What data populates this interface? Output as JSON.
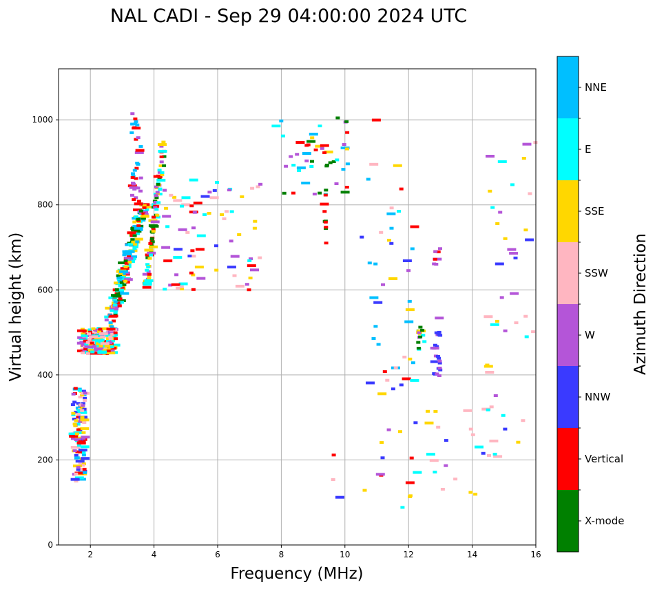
{
  "chart_data": {
    "type": "scatter",
    "title": "NAL CADI - Sep 29 04:00:00 2024 UTC",
    "xlabel": "Frequency (MHz)",
    "ylabel": "Virtual height (km)",
    "xlim": [
      1,
      16
    ],
    "ylim": [
      0,
      1120
    ],
    "xticks": [
      2,
      4,
      6,
      8,
      10,
      12,
      14,
      16
    ],
    "yticks": [
      0,
      200,
      400,
      600,
      800,
      1000
    ],
    "grid": true,
    "colorbar": {
      "label": "Azimuth Direction",
      "categories": [
        {
          "name": "X-mode",
          "color": "#008000"
        },
        {
          "name": "Vertical",
          "color": "#ff0000"
        },
        {
          "name": "NNW",
          "color": "#3a3aff"
        },
        {
          "name": "W",
          "color": "#b455d8"
        },
        {
          "name": "SSW",
          "color": "#ffb6c1"
        },
        {
          "name": "SSE",
          "color": "#ffd700"
        },
        {
          "name": "E",
          "color": "#00ffff"
        },
        {
          "name": "NNE",
          "color": "#00bfff"
        }
      ]
    },
    "clusters": [
      {
        "name": "low-o-trace",
        "x": [
          1.45,
          1.85
        ],
        "y": [
          150,
          370
        ],
        "mix": [
          "Vertical",
          "NNW",
          "SSW",
          "SSE",
          "E",
          "W",
          "NNE"
        ],
        "n": 120
      },
      {
        "name": "f-cusp",
        "x": [
          1.7,
          2.8
        ],
        "y": [
          450,
          510
        ],
        "mix": [
          "Vertical",
          "SSW",
          "W",
          "E",
          "SSE"
        ],
        "n": 170
      },
      {
        "name": "f-rise",
        "x": [
          2.6,
          3.7
        ],
        "y": [
          520,
          800
        ],
        "mix": [
          "E",
          "NNE",
          "Vertical",
          "SSE",
          "X-mode",
          "W"
        ],
        "n": 190
      },
      {
        "name": "f-top",
        "x": [
          3.3,
          3.6
        ],
        "y": [
          800,
          1020
        ],
        "mix": [
          "Vertical",
          "W",
          "NNE"
        ],
        "n": 35
      },
      {
        "name": "x-trace",
        "x": [
          3.7,
          4.3
        ],
        "y": [
          580,
          940
        ],
        "mix": [
          "X-mode",
          "SSE",
          "E",
          "Vertical",
          "W"
        ],
        "n": 90
      },
      {
        "name": "spread-mid",
        "x": [
          4.3,
          7.4
        ],
        "y": [
          600,
          860
        ],
        "mix": [
          "E",
          "W",
          "NNW",
          "SSW",
          "SSE",
          "Vertical"
        ],
        "n": 75
      },
      {
        "name": "spread-high",
        "x": [
          7.8,
          10.2
        ],
        "y": [
          820,
          1010
        ],
        "mix": [
          "SSE",
          "E",
          "W",
          "X-mode",
          "Vertical",
          "NNE"
        ],
        "n": 45
      },
      {
        "name": "x-column-9.4",
        "x": [
          9.35,
          9.45
        ],
        "y": [
          700,
          940
        ],
        "mix": [
          "X-mode",
          "Vertical"
        ],
        "n": 14
      },
      {
        "name": "scatter-11",
        "x": [
          10.5,
          12.2
        ],
        "y": [
          350,
          1010
        ],
        "mix": [
          "W",
          "SSW",
          "NNE",
          "SSE",
          "Vertical",
          "NNW",
          "E"
        ],
        "n": 42
      },
      {
        "name": "block-12.4",
        "x": [
          12.3,
          12.5
        ],
        "y": [
          455,
          515
        ],
        "mix": [
          "NNE",
          "E",
          "X-mode",
          "SSE",
          "W"
        ],
        "n": 14
      },
      {
        "name": "block-12.9",
        "x": [
          12.8,
          13.0
        ],
        "y": [
          395,
          535
        ],
        "mix": [
          "NNW",
          "W"
        ],
        "n": 24
      },
      {
        "name": "block-12.9-hi",
        "x": [
          12.8,
          13.0
        ],
        "y": [
          660,
          700
        ],
        "mix": [
          "Vertical",
          "W"
        ],
        "n": 8
      },
      {
        "name": "low-heights",
        "x": [
          9.3,
          15.0
        ],
        "y": [
          88,
          320
        ],
        "mix": [
          "W",
          "SSE",
          "NNW",
          "Vertical",
          "E",
          "SSW"
        ],
        "n": 36
      },
      {
        "name": "edge-14-16",
        "x": [
          14.3,
          16.0
        ],
        "y": [
          140,
          950
        ],
        "mix": [
          "SSE",
          "W",
          "NNW",
          "E",
          "SSW"
        ],
        "n": 42
      }
    ]
  }
}
